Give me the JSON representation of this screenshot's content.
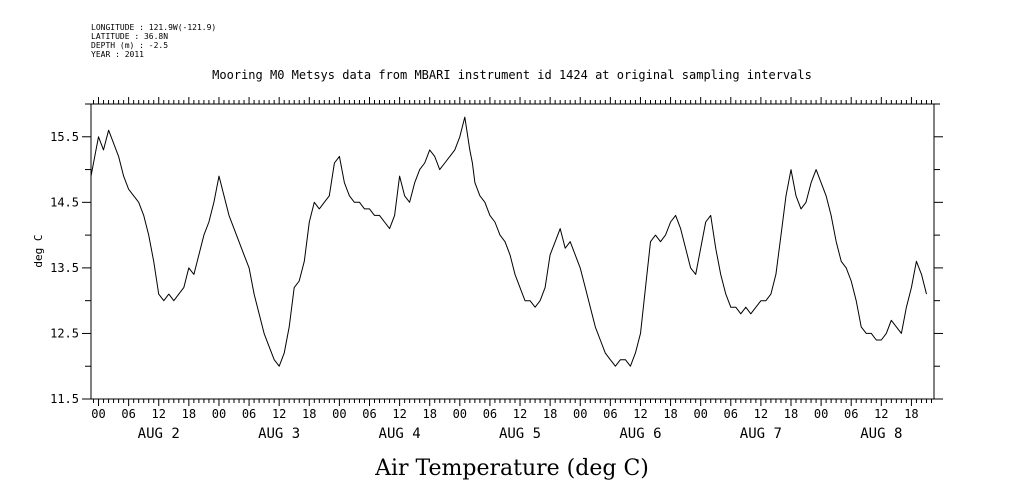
{
  "meta_lines": [
    "LONGITUDE : 121.9W(-121.9)",
    "LATITUDE : 36.8N",
    "DEPTH (m) : -2.5",
    "YEAR : 2011"
  ],
  "chart_data": {
    "type": "line",
    "title": "Mooring M0 Metsys data from MBARI instrument id 1424 at original sampling intervals",
    "xlabel": "Air Temperature (deg C)",
    "ylabel": "deg C",
    "x_unit": "hours since AUG 2 00:00",
    "xlim": [
      -1.5,
      166.5
    ],
    "ylim": [
      11.5,
      16.0
    ],
    "yticks": [
      11.5,
      12.5,
      13.5,
      14.5,
      15.5
    ],
    "ytick_labels": [
      "11.5",
      "12.5",
      "13.5",
      "14.5",
      "15.5"
    ],
    "hour_labels": [
      "00",
      "06",
      "12",
      "18"
    ],
    "day_labels": [
      "AUG 2",
      "AUG 3",
      "AUG 4",
      "AUG 5",
      "AUG 6",
      "AUG 7",
      "AUG 8"
    ],
    "grid": false,
    "series": [
      {
        "color": "#000000",
        "x": [
          -1.5,
          0,
          1,
          2,
          3,
          4,
          5,
          6,
          7,
          8,
          9,
          10,
          11,
          12,
          13,
          14,
          15,
          16,
          17,
          18,
          19,
          20,
          21,
          22,
          23,
          24,
          25,
          26,
          27,
          28,
          29,
          30,
          31,
          32,
          33,
          34,
          35,
          36,
          37,
          38,
          39,
          40,
          41,
          42,
          43,
          44,
          45,
          46,
          47,
          48,
          49,
          50,
          51,
          52,
          53,
          54,
          55,
          56,
          57,
          58,
          59,
          60,
          61,
          62,
          63,
          64,
          65,
          66,
          67,
          68,
          69,
          70,
          71,
          72,
          73,
          74,
          74.5,
          75,
          76,
          77,
          78,
          79,
          80,
          81,
          82,
          83,
          84,
          85,
          86,
          87,
          88,
          89,
          90,
          91,
          92,
          93,
          94,
          95,
          96,
          97,
          98,
          99,
          100,
          101,
          102,
          103,
          104,
          105,
          106,
          107,
          108,
          109,
          110,
          111,
          112,
          113,
          114,
          115,
          116,
          117,
          118,
          119,
          120,
          121,
          122,
          123,
          124,
          125,
          126,
          127,
          128,
          129,
          130,
          131,
          132,
          133,
          134,
          135,
          136,
          137,
          138,
          139,
          140,
          141,
          142,
          143,
          144,
          145,
          146,
          147,
          148,
          149,
          150,
          151,
          152,
          153,
          154,
          155,
          156,
          157,
          158,
          159,
          160,
          161,
          162,
          163,
          164,
          165
        ],
        "y": [
          14.9,
          15.5,
          15.3,
          15.6,
          15.4,
          15.2,
          14.9,
          14.7,
          14.6,
          14.5,
          14.3,
          14.0,
          13.6,
          13.1,
          13.0,
          13.1,
          13.0,
          13.1,
          13.2,
          13.5,
          13.4,
          13.7,
          14.0,
          14.2,
          14.5,
          14.9,
          14.6,
          14.3,
          14.1,
          13.9,
          13.7,
          13.5,
          13.1,
          12.8,
          12.5,
          12.3,
          12.1,
          12.0,
          12.2,
          12.6,
          13.2,
          13.3,
          13.6,
          14.2,
          14.5,
          14.4,
          14.5,
          14.6,
          15.1,
          15.2,
          14.8,
          14.6,
          14.5,
          14.5,
          14.4,
          14.4,
          14.3,
          14.3,
          14.2,
          14.1,
          14.3,
          14.9,
          14.6,
          14.5,
          14.8,
          15.0,
          15.1,
          15.3,
          15.2,
          15.0,
          15.1,
          15.2,
          15.3,
          15.5,
          15.8,
          15.3,
          15.1,
          14.8,
          14.6,
          14.5,
          14.3,
          14.2,
          14.0,
          13.9,
          13.7,
          13.4,
          13.2,
          13.0,
          13.0,
          12.9,
          13.0,
          13.2,
          13.7,
          13.9,
          14.1,
          13.8,
          13.9,
          13.7,
          13.5,
          13.2,
          12.9,
          12.6,
          12.4,
          12.2,
          12.1,
          12.0,
          12.1,
          12.1,
          12.0,
          12.2,
          12.5,
          13.2,
          13.9,
          14.0,
          13.9,
          14.0,
          14.2,
          14.3,
          14.1,
          13.8,
          13.5,
          13.4,
          13.8,
          14.2,
          14.3,
          13.8,
          13.4,
          13.1,
          12.9,
          12.9,
          12.8,
          12.9,
          12.8,
          12.9,
          13.0,
          13.0,
          13.1,
          13.4,
          14.0,
          14.6,
          15.0,
          14.6,
          14.4,
          14.5,
          14.8,
          15.0,
          14.8,
          14.6,
          14.3,
          13.9,
          13.6,
          13.5,
          13.3,
          13.0,
          12.6,
          12.5,
          12.5,
          12.4,
          12.4,
          12.5,
          12.7,
          12.6,
          12.5,
          12.9,
          13.2,
          13.6,
          13.4,
          13.1
        ]
      }
    ]
  }
}
